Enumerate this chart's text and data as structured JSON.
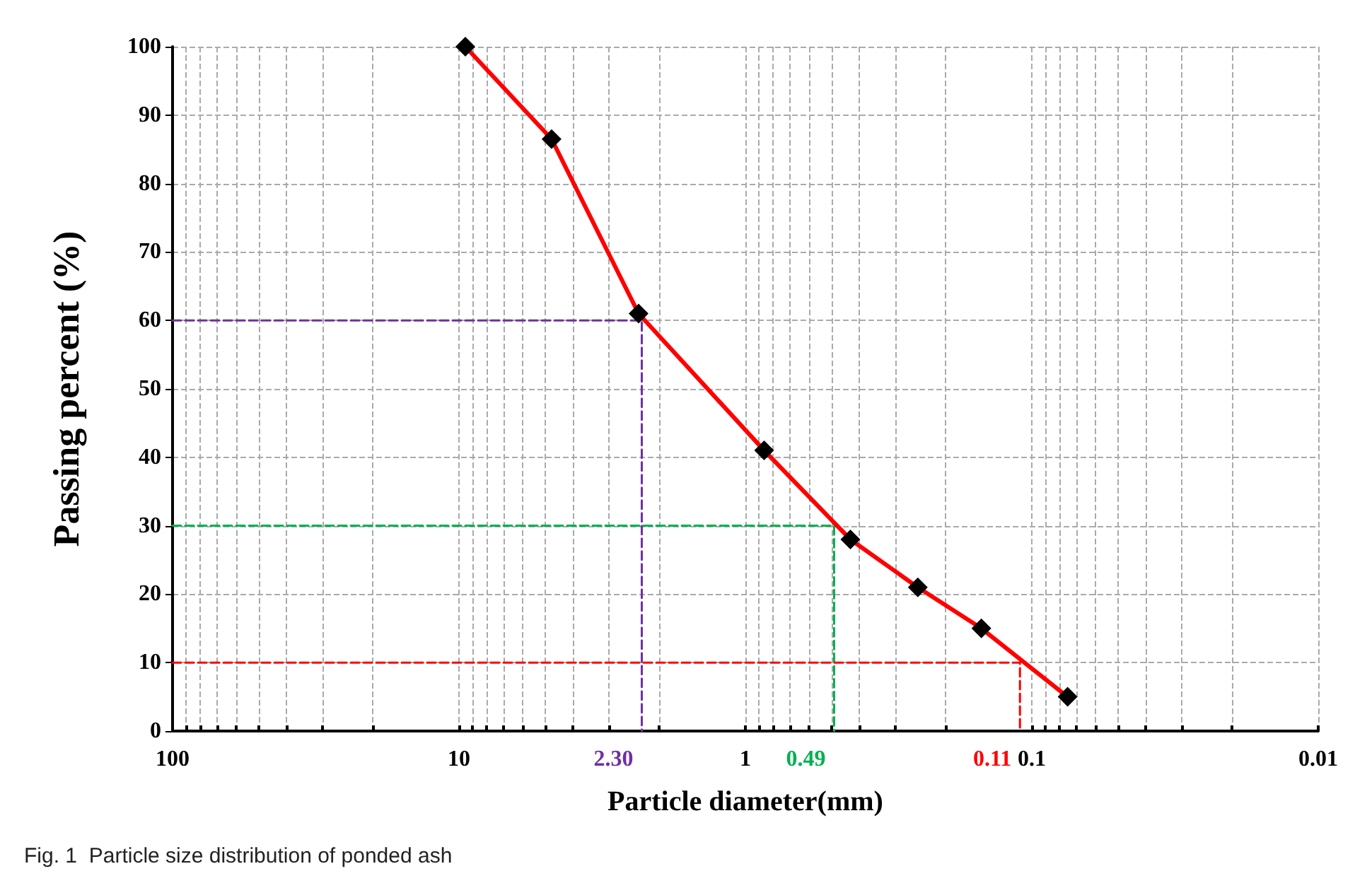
{
  "chart_data": {
    "type": "line",
    "xlabel": "Particle diameter(mm)",
    "ylabel": "Passing percent (%)",
    "log": "x",
    "grid": true,
    "xlim": [
      100,
      0.01
    ],
    "xticks": [
      100,
      10,
      1,
      0.1,
      0.01
    ],
    "ylim": [
      0,
      100
    ],
    "yticks": [
      0,
      10,
      20,
      30,
      40,
      50,
      60,
      70,
      80,
      90,
      100
    ],
    "series": [
      {
        "color": "#ff0000",
        "colors": [
          "#000000",
          "#000000",
          "#000000",
          "#000000",
          "#000000",
          "#000000",
          "#000000",
          "#000000"
        ],
        "marker": "diamond",
        "line_style": "solid",
        "x": [
          9.5,
          4.75,
          2.36,
          0.86,
          0.43,
          0.25,
          0.15,
          0.075
        ],
        "values": [
          100,
          86.5,
          61,
          41,
          28,
          21,
          15,
          5
        ]
      },
      {
        "color": "#7030a0",
        "marker": "none",
        "line_style": "dashed",
        "x": [
          100,
          2.3,
          2.3
        ],
        "values": [
          60,
          60,
          0
        ]
      },
      {
        "color": "#00b050",
        "marker": "none",
        "line_style": "dashed",
        "x": [
          100,
          0.49,
          0.49
        ],
        "values": [
          30,
          30,
          0
        ]
      },
      {
        "color": "#ff0000",
        "marker": "none",
        "line_style": "dashed",
        "x": [
          100,
          0.11,
          0.11
        ],
        "values": [
          10,
          10,
          0
        ]
      }
    ],
    "annotations": [
      {
        "text": "2.30",
        "x": 2.3,
        "y": 0
      },
      {
        "text": "0.49",
        "x": 0.49,
        "y": 0
      },
      {
        "text": "0.11",
        "x": 0.11,
        "y": 0
      },
      "Fig. 1  Particle size distribution of ponded ash"
    ]
  }
}
